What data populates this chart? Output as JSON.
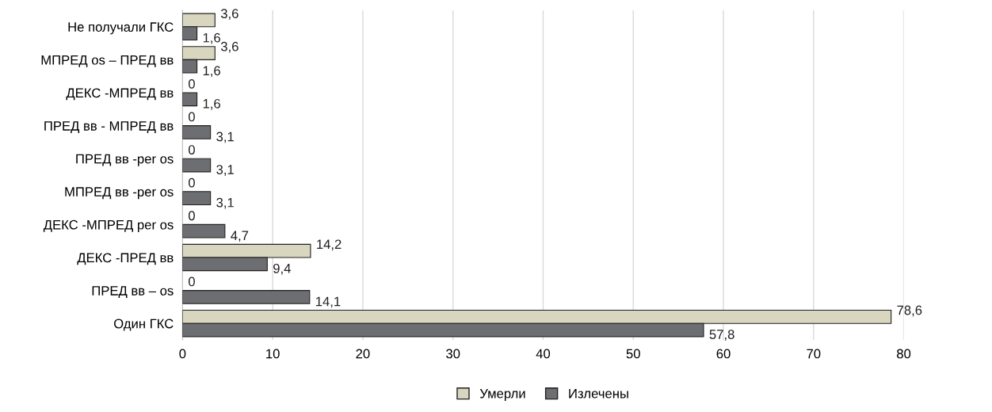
{
  "chart_data": {
    "type": "bar",
    "orientation": "horizontal",
    "categories": [
      "Не получали ГКС",
      "МПРЕД os – ПРЕД вв",
      "ДЕКС -МПРЕД вв",
      "ПРЕД вв - МПРЕД вв",
      "ПРЕД вв -per os",
      "МПРЕД вв -per os",
      "ДЕКС -МПРЕД per os",
      "ДЕКС -ПРЕД вв",
      "ПРЕД вв – os",
      "Один ГКС"
    ],
    "series": [
      {
        "name": "Умерли",
        "color": "#d9d6c0",
        "values": [
          3.6,
          3.6,
          0,
          0,
          0,
          0,
          0,
          14.2,
          0,
          78.6
        ],
        "value_labels": [
          "3,6",
          "3,6",
          "0",
          "0",
          "0",
          "0",
          "0",
          "14,2",
          "0",
          "78,6"
        ]
      },
      {
        "name": "Излечены",
        "color": "#6d6e71",
        "values": [
          1.6,
          1.6,
          1.6,
          3.1,
          3.1,
          3.1,
          4.7,
          9.4,
          14.1,
          57.8
        ],
        "value_labels": [
          "1,6",
          "1,6",
          "1,6",
          "3,1",
          "3,1",
          "3,1",
          "4,7",
          "9,4",
          "14,1",
          "57,8"
        ]
      }
    ],
    "xlim": [
      0,
      80
    ],
    "xticks": [
      0,
      10,
      20,
      30,
      40,
      50,
      60,
      70,
      80
    ],
    "grid": "x",
    "legend": "bottom"
  }
}
